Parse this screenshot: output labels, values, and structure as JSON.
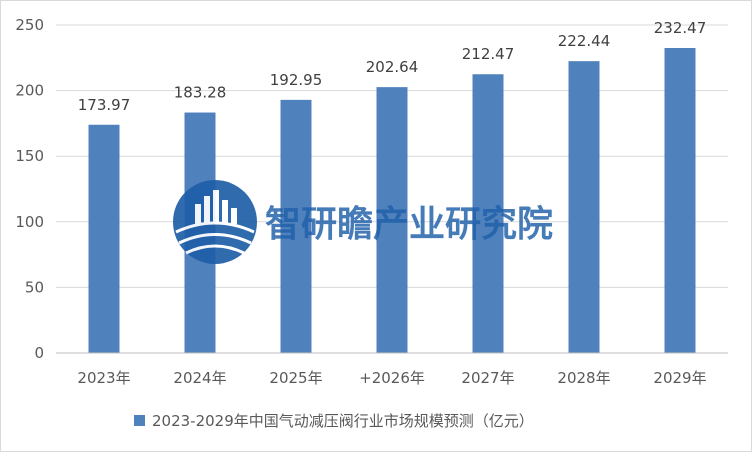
{
  "chart_data": {
    "type": "bar",
    "categories": [
      "2023年",
      "2024年",
      "2025年",
      "+2026年",
      "2027年",
      "2028年",
      "2029年"
    ],
    "series": [
      {
        "name": "2023-2029年中国气动减压阀行业市场规模预测（亿元）",
        "values": [
          173.97,
          183.28,
          192.95,
          202.64,
          212.47,
          222.44,
          232.47
        ],
        "labels": [
          "173.97",
          "183.28",
          "192.95",
          "202.64",
          "212.47",
          "222.44",
          "232.47"
        ],
        "color": "#4f81bd"
      }
    ],
    "ylim": [
      0,
      250
    ],
    "yticks": [
      0,
      50,
      100,
      150,
      200,
      250
    ],
    "grid": true,
    "legend": "bottom"
  },
  "watermark": {
    "text": "智研瞻产业研究院",
    "color": "#1f5fa8",
    "icon": "city-globe-logo"
  }
}
